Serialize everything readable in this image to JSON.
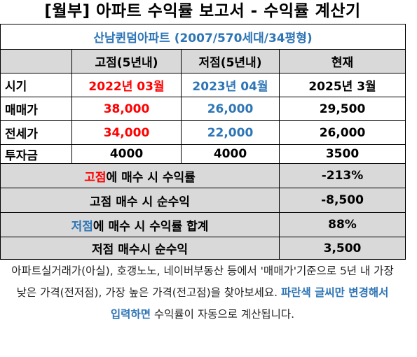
{
  "title": "[월부] 아파트 수익률 보고서 - 수익률 계산기",
  "subtitle": "산남퀸덤아파트 (2007/570세대/34평형)",
  "headers": [
    "",
    "고점(5년내)",
    "저점(5년내)",
    "현재"
  ],
  "rows": [
    {
      "label": "시기",
      "high": "2022년 03월",
      "low": "2023년 04월",
      "now": "2025년 3월"
    },
    {
      "label": "매매가",
      "high": "38,000",
      "low": "26,000",
      "now": "29,500"
    },
    {
      "label": "전세가",
      "high": "34,000",
      "low": "22,000",
      "now": "26,000"
    },
    {
      "label": "투자금",
      "high": "4000",
      "low": "4000",
      "now": "3500"
    }
  ],
  "summary": [
    {
      "label_colored": "고점",
      "label_rest": "에 매수 시 수익률",
      "value": "-213%"
    },
    {
      "label_colored": "",
      "label_rest": "고점 매수 시 순수익",
      "value": "-8,500"
    },
    {
      "label_colored": "저점",
      "label_rest": "에 매수 시 수익률 합계",
      "value": "88%"
    },
    {
      "label_colored": "",
      "label_rest": "저점 매수시 순수익",
      "value": "3,500"
    }
  ],
  "note": {
    "part1": "아파트실거래가(아실), 호갱노노, 네이버부동산 등에서 '매매가'기준으로 5년 내 가장 낮은 가격(전저점), 가장 높은 가격(전고점)을 찾아보세요. ",
    "highlight": "파란색 글씨만 변경해서 입력하면",
    "part2": " 수익률이 자동으로 계산됩니다."
  },
  "colors": {
    "red": "#ff0000",
    "blue": "#2e75b6",
    "gray": "#d9d9d9"
  }
}
